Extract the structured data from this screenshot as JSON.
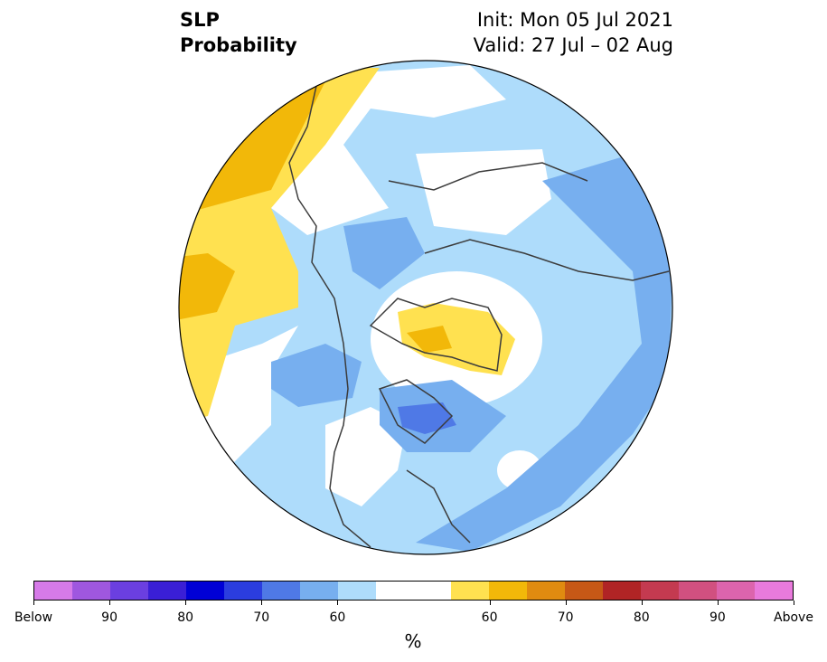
{
  "title": {
    "variable": "SLP",
    "kind": "Probability",
    "init": "Init: Mon 05 Jul 2021",
    "valid": "Valid: 27 Jul – 02 Aug"
  },
  "colors": {
    "below": [
      "#d67ae8",
      "#9f57df",
      "#6b3fe0",
      "#3a1fd6",
      "#0000d6",
      "#2b3ddf",
      "#4f79e6",
      "#77afef",
      "#aedcfb"
    ],
    "neutral": "#ffffff",
    "above": [
      "#ffe150",
      "#f2b809",
      "#e08b10",
      "#c65816",
      "#b02425",
      "#c43a50",
      "#d15080",
      "#dc64ad",
      "#e97adc"
    ],
    "land_outline": "#3c3c3c"
  },
  "colorbar": {
    "labels": [
      "Below",
      "90",
      "80",
      "70",
      "60",
      "60",
      "70",
      "80",
      "90",
      "Above"
    ],
    "unit": "%"
  },
  "map_features": [
    "north-polar-stereographic",
    "coastlines",
    "country-borders",
    "us-state-borders"
  ]
}
